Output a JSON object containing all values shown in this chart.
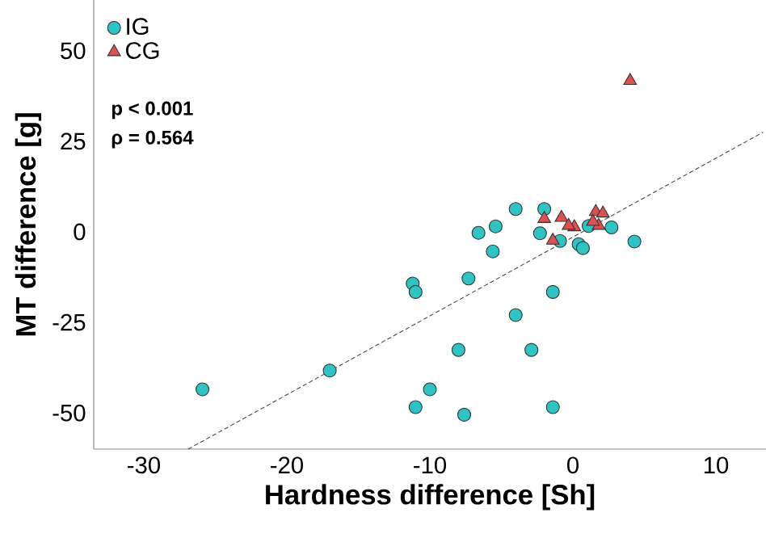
{
  "chart_data": {
    "type": "scatter",
    "xlabel": "Hardness difference [Sh]",
    "ylabel": "MT difference [g]",
    "xlim": [
      -33.5,
      13.5
    ],
    "ylim": [
      -60,
      64
    ],
    "xticks": [
      -30,
      -20,
      -10,
      0,
      10
    ],
    "yticks": [
      -50,
      -25,
      0,
      25,
      50
    ],
    "grid": false,
    "legend": "top left",
    "annotations": [
      "**p < 0.001**",
      "**ρ = 0.564**"
    ],
    "series": [
      {
        "name": "IG",
        "color": "#2ec4c4",
        "marker": "circle",
        "x": [
          -25.9,
          -17.0,
          -11.2,
          -11.0,
          -7.3,
          -8.0,
          -10.0,
          -11.0,
          -7.6,
          -4.0,
          -2.9,
          -1.4,
          -1.4,
          4.3,
          -5.6,
          -6.6,
          -4.0,
          -2.0,
          -5.4,
          -2.3,
          -0.9,
          0.4,
          0.7,
          2.7,
          1.1
        ],
        "values": [
          -43.5,
          -38.3,
          -14.3,
          -16.6,
          -12.9,
          -32.6,
          -43.5,
          -48.4,
          -50.5,
          -23.0,
          -32.6,
          -16.6,
          -48.4,
          -2.7,
          -5.4,
          -0.3,
          6.3,
          6.3,
          1.5,
          -0.4,
          -2.5,
          -3.4,
          -4.5,
          1.2,
          1.6
        ]
      },
      {
        "name": "CG",
        "color": "#e05050",
        "marker": "triangle",
        "x": [
          -2.0,
          -0.8,
          0.1,
          -1.4,
          1.6,
          2.1,
          1.8,
          -0.3,
          1.4,
          4.0
        ],
        "values": [
          3.6,
          3.9,
          1.3,
          -2.4,
          5.5,
          5.1,
          1.7,
          1.7,
          2.8,
          41.7
        ]
      },
      {
        "type": "line",
        "color": "#444444",
        "marker": "none",
        "line_style": "dashed",
        "x": [
          -26.9,
          13.3
        ],
        "values": [
          -60,
          27.5
        ]
      }
    ]
  }
}
